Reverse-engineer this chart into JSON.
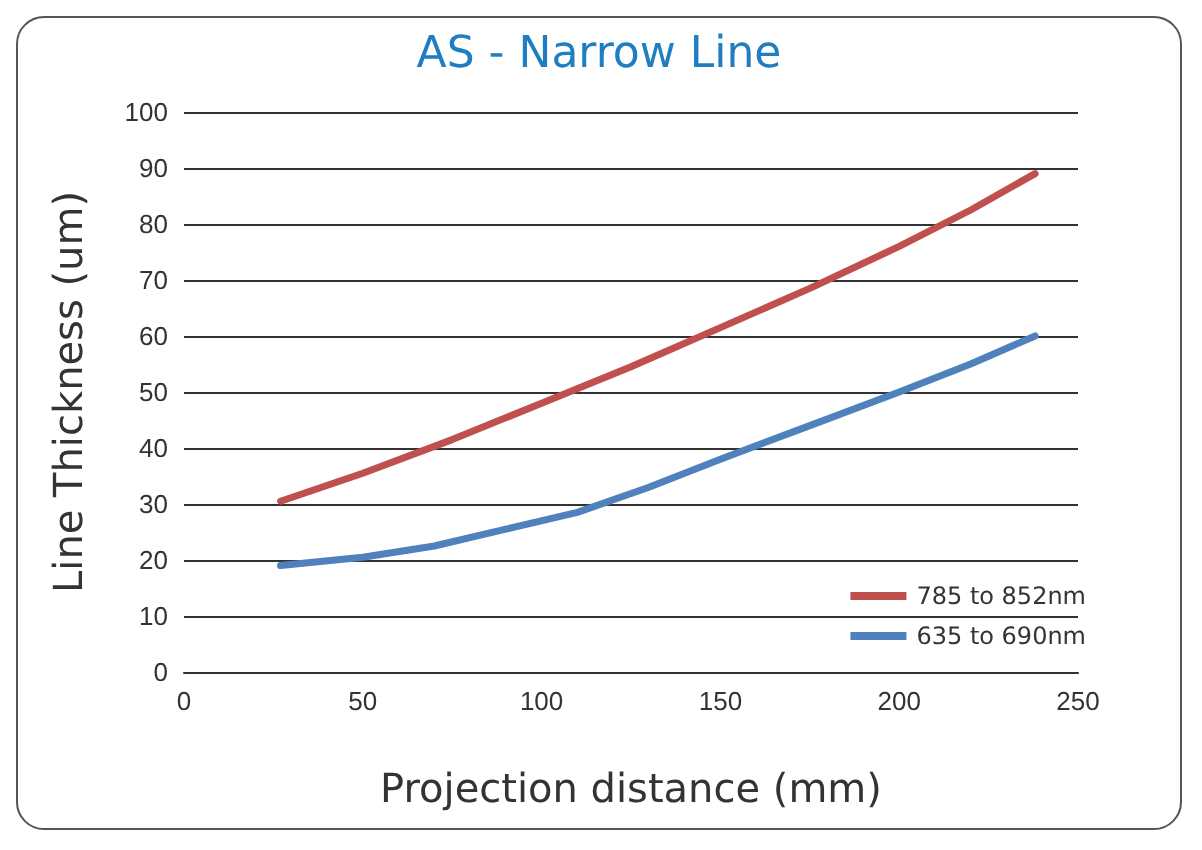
{
  "chart_data": {
    "type": "line",
    "title": "AS - Narrow Line",
    "xlabel": "Projection distance (mm)",
    "ylabel": "Line Thickness (um)",
    "xlim": [
      0,
      250
    ],
    "xticks": [
      0,
      50,
      100,
      150,
      200,
      250
    ],
    "ylim": [
      0,
      100
    ],
    "yticks": [
      0,
      10,
      20,
      30,
      40,
      50,
      60,
      70,
      80,
      90,
      100
    ],
    "grid": "y",
    "legend": "bottom right",
    "marker": "none",
    "line_style": "solid",
    "series": [
      {
        "name": "785 to 852nm",
        "color": "#c0504d",
        "x": [
          27,
          50,
          75,
          100,
          125,
          150,
          175,
          200,
          220,
          238
        ],
        "values": [
          30.5,
          35.5,
          41.5,
          48,
          54.5,
          61.5,
          68.5,
          76,
          82.5,
          89
        ]
      },
      {
        "name": "635 to 690nm",
        "color": "#4f81bd",
        "x": [
          27,
          50,
          70,
          90,
          110,
          130,
          150,
          175,
          200,
          220,
          238
        ],
        "values": [
          19,
          20.5,
          22.5,
          25.5,
          28.5,
          33,
          38,
          44,
          50,
          55,
          60
        ]
      }
    ]
  }
}
